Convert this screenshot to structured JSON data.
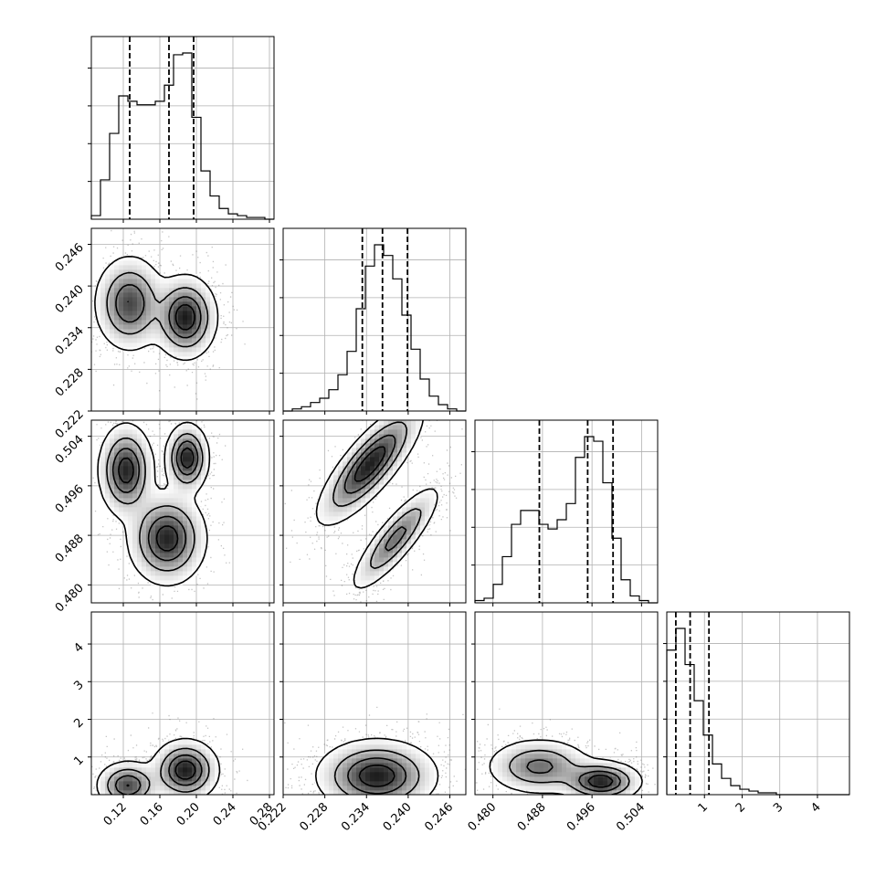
{
  "chart_data": {
    "type": "corner",
    "title": "",
    "grid": true,
    "parameters": [
      {
        "ticks": [
          0.12,
          0.16,
          0.2,
          0.24,
          0.28
        ],
        "tick_labels": [
          "0.12",
          "0.16",
          "0.20",
          "0.24",
          "0.28"
        ],
        "range": [
          0.085,
          0.285
        ],
        "quantiles": [
          0.127,
          0.17,
          0.197
        ],
        "hist_counts": [
          2,
          22,
          48,
          69,
          66,
          64,
          64,
          66,
          75,
          92,
          93,
          57,
          27,
          13,
          6,
          3,
          2,
          1,
          1,
          0
        ]
      },
      {
        "ticks": [
          0.222,
          0.228,
          0.234,
          0.24,
          0.246
        ],
        "tick_labels": [
          "0.222",
          "0.228",
          "0.234",
          "0.240",
          "0.246"
        ],
        "range": [
          0.222,
          0.2483
        ],
        "quantiles": [
          0.2334,
          0.2363,
          0.2399
        ],
        "hist_counts": [
          0,
          1,
          2,
          4,
          6,
          10,
          17,
          28,
          48,
          68,
          78,
          73,
          62,
          45,
          29,
          15,
          7,
          3,
          1,
          0
        ]
      },
      {
        "ticks": [
          0.48,
          0.488,
          0.496,
          0.504
        ],
        "tick_labels": [
          "0.480",
          "0.488",
          "0.496",
          "0.504"
        ],
        "range": [
          0.4771,
          0.5066
        ],
        "quantiles": [
          0.4875,
          0.4953,
          0.4994
        ],
        "hist_counts": [
          1,
          2,
          8,
          20,
          34,
          40,
          40,
          34,
          32,
          36,
          43,
          63,
          72,
          70,
          52,
          28,
          10,
          3,
          1,
          0
        ]
      },
      {
        "ticks": [
          1,
          2,
          3,
          4
        ],
        "tick_labels": [
          "1",
          "2",
          "3",
          "4"
        ],
        "range": [
          0.0,
          4.85
        ],
        "quantiles": [
          0.24,
          0.62,
          1.12
        ],
        "hist_counts": [
          80,
          92,
          72,
          52,
          33,
          17,
          9,
          5,
          3,
          2,
          1,
          1,
          0,
          0,
          0,
          0,
          0,
          0,
          0,
          0
        ]
      }
    ],
    "pair_modes": [
      {
        "row": 1,
        "col": 0,
        "modes": [
          {
            "mx": 0.127,
            "my": 0.2375,
            "sx": 0.018,
            "sy": 0.0032,
            "r": 0,
            "w": 0.45
          },
          {
            "mx": 0.188,
            "my": 0.2355,
            "sx": 0.016,
            "sy": 0.0028,
            "r": 0,
            "w": 0.55
          }
        ]
      },
      {
        "row": 2,
        "col": 0,
        "modes": [
          {
            "mx": 0.123,
            "my": 0.4985,
            "sx": 0.014,
            "sy": 0.0035,
            "r": 0,
            "w": 0.33
          },
          {
            "mx": 0.19,
            "my": 0.5005,
            "sx": 0.011,
            "sy": 0.0026,
            "r": 0,
            "w": 0.34
          },
          {
            "mx": 0.168,
            "my": 0.4875,
            "sx": 0.02,
            "sy": 0.0035,
            "r": 0,
            "w": 0.33
          }
        ]
      },
      {
        "row": 2,
        "col": 1,
        "modes": [
          {
            "mx": 0.2345,
            "my": 0.4995,
            "sx": 0.0035,
            "sy": 0.0045,
            "r": 0.8,
            "w": 0.6
          },
          {
            "mx": 0.2382,
            "my": 0.4875,
            "sx": 0.003,
            "sy": 0.004,
            "r": 0.85,
            "w": 0.4
          }
        ]
      },
      {
        "row": 3,
        "col": 0,
        "modes": [
          {
            "mx": 0.125,
            "my": 0.25,
            "sx": 0.016,
            "sy": 0.3,
            "r": 0,
            "w": 0.45
          },
          {
            "mx": 0.188,
            "my": 0.65,
            "sx": 0.017,
            "sy": 0.38,
            "r": 0,
            "w": 0.55
          }
        ]
      },
      {
        "row": 3,
        "col": 1,
        "modes": [
          {
            "mx": 0.2355,
            "my": 0.5,
            "sx": 0.004,
            "sy": 0.45,
            "r": 0,
            "w": 1.0
          }
        ]
      },
      {
        "row": 3,
        "col": 2,
        "modes": [
          {
            "mx": 0.4875,
            "my": 0.75,
            "sx": 0.004,
            "sy": 0.35,
            "r": 0,
            "w": 0.4
          },
          {
            "mx": 0.4975,
            "my": 0.35,
            "sx": 0.003,
            "sy": 0.25,
            "r": 0,
            "w": 0.6
          }
        ]
      }
    ]
  }
}
